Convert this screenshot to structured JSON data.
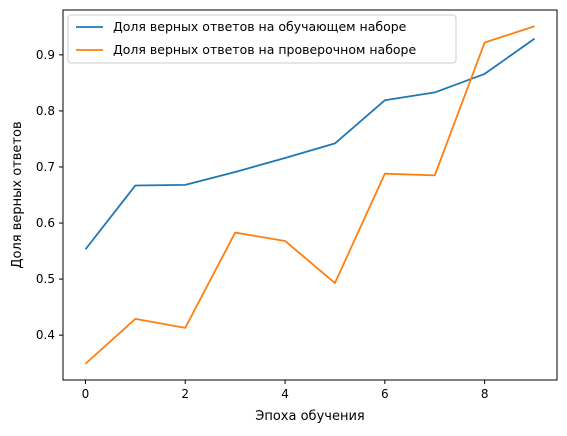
{
  "chart_data": {
    "type": "line",
    "title": "",
    "xlabel": "Эпоха обучения",
    "ylabel": "Доля верных ответов",
    "x": [
      0,
      1,
      2,
      3,
      4,
      5,
      6,
      7,
      8,
      9
    ],
    "xlim": [
      -0.45,
      9.45
    ],
    "ylim": [
      0.32,
      0.98
    ],
    "xticks": [
      0,
      2,
      4,
      6,
      8
    ],
    "yticks": [
      0.4,
      0.5,
      0.6,
      0.7,
      0.8,
      0.9
    ],
    "xtick_labels": [
      "0",
      "2",
      "4",
      "6",
      "8"
    ],
    "ytick_labels": [
      "0.4",
      "0.5",
      "0.6",
      "0.7",
      "0.8",
      "0.9"
    ],
    "grid": false,
    "legend_position": "top-left",
    "series": [
      {
        "name": "Доля верных ответов на обучающем наборе",
        "color": "#1f77b4",
        "values": [
          0.553,
          0.667,
          0.668,
          0.691,
          0.716,
          0.742,
          0.819,
          0.833,
          0.866,
          0.929
        ]
      },
      {
        "name": "Доля верных ответов на проверочном наборе",
        "color": "#ff7f0e",
        "values": [
          0.349,
          0.429,
          0.413,
          0.583,
          0.568,
          0.493,
          0.688,
          0.685,
          0.922,
          0.951
        ]
      }
    ]
  }
}
